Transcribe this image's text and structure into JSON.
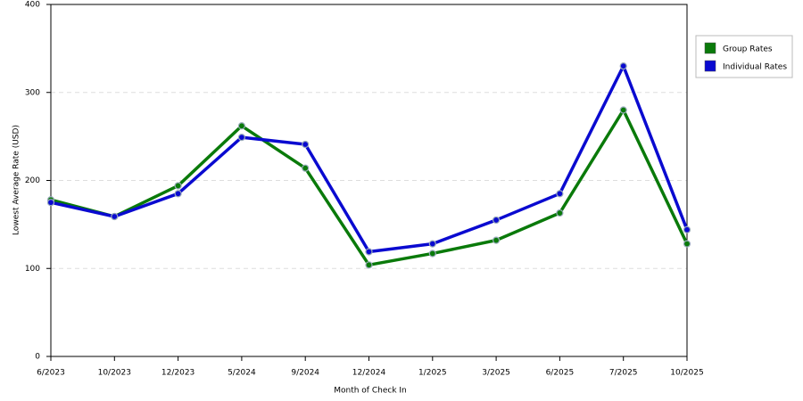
{
  "chart_data": {
    "type": "line",
    "x_label": "Month of Check In",
    "y_label": "Lowest Average Rate (USD)",
    "categories": [
      "6/2023",
      "10/2023",
      "12/2023",
      "5/2024",
      "9/2024",
      "12/2024",
      "1/2025",
      "3/2025",
      "6/2025",
      "7/2025",
      "10/2025"
    ],
    "series": [
      {
        "name": "Group Rates",
        "color": "#0a7a0a",
        "values": [
          178,
          159,
          194,
          262,
          214,
          104,
          117,
          132,
          163,
          280,
          128
        ]
      },
      {
        "name": "Individual Rates",
        "color": "#0a0ad0",
        "values": [
          175,
          159,
          185,
          249,
          241,
          119,
          128,
          155,
          185,
          330,
          144
        ]
      }
    ],
    "ylim": [
      0,
      400
    ],
    "yticks": [
      0,
      100,
      200,
      300,
      400
    ],
    "grid": true,
    "legend": "right"
  }
}
